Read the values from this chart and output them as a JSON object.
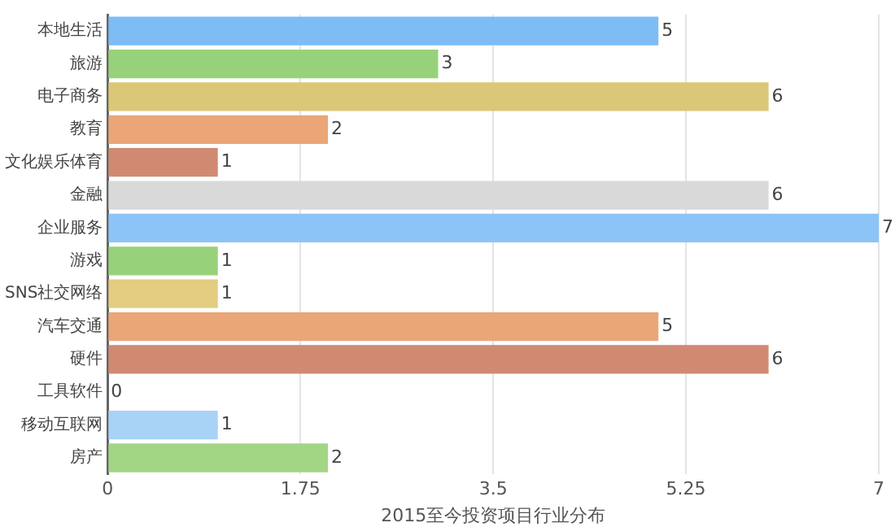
{
  "chart_data": {
    "type": "bar",
    "orientation": "horizontal",
    "xlabel": "2015至今投资项目行业分布",
    "categories": [
      "本地生活",
      "旅游",
      "电子商务",
      "教育",
      "文化娱乐体育",
      "金融",
      "企业服务",
      "游戏",
      "SNS社交网络",
      "汽车交通",
      "硬件",
      "工具软件",
      "移动互联网",
      "房产"
    ],
    "values": [
      5,
      3,
      6,
      2,
      1,
      6,
      7,
      1,
      1,
      5,
      6,
      0,
      1,
      2
    ],
    "colors": [
      "#7dbcf5",
      "#97d27a",
      "#dcc778",
      "#eaa676",
      "#d08a72",
      "#d9d9d9",
      "#8cc4f7",
      "#97d27a",
      "#e2cd80",
      "#eaa676",
      "#d08a72",
      "#7dbcf5",
      "#a9d2f7",
      "#a2d685"
    ],
    "xlim": [
      0,
      7
    ],
    "xticks": [
      0,
      1.75,
      3.5,
      5.25,
      7
    ],
    "grid": "x",
    "data_labels": true,
    "legend": false
  }
}
